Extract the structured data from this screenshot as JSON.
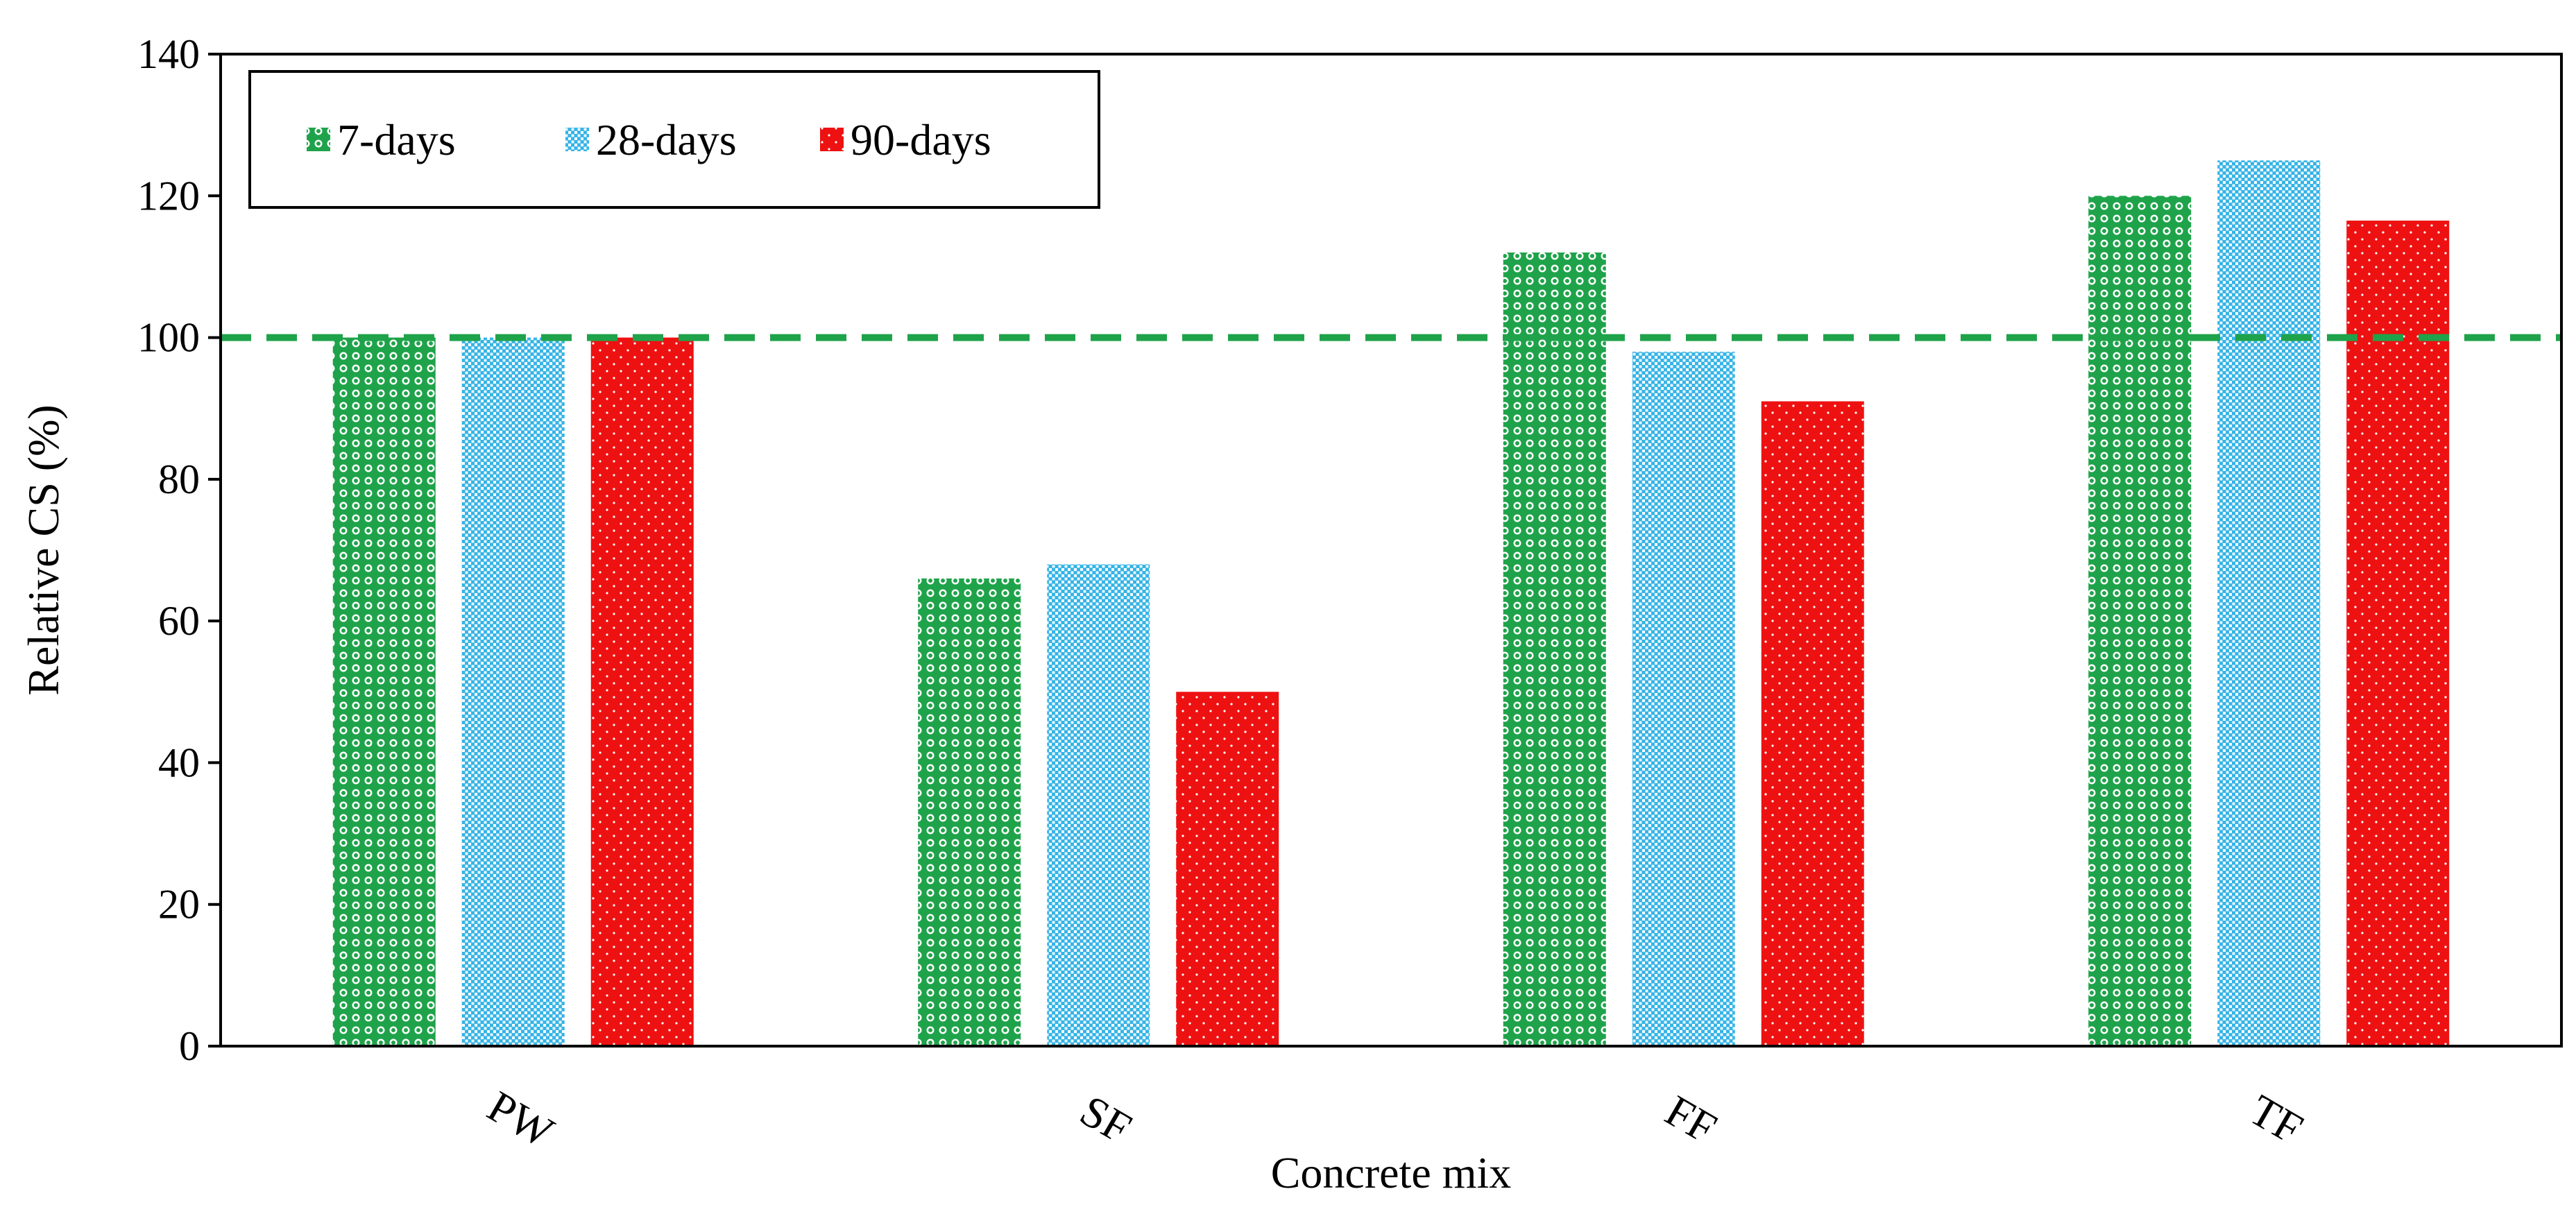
{
  "chart_data": {
    "type": "bar",
    "title": "",
    "xlabel": "Concrete mix",
    "ylabel": "Relative CS (%)",
    "categories": [
      "PW",
      "SF",
      "FF",
      "TF"
    ],
    "ylim": [
      0,
      140
    ],
    "yticks": [
      0,
      20,
      40,
      60,
      80,
      100,
      120,
      140
    ],
    "ytick_labels": [
      "0",
      "20",
      "40",
      "60",
      "80",
      "100",
      "120",
      "140"
    ],
    "grid": false,
    "legend_position": "top-left",
    "series": [
      {
        "name": "7-days",
        "color": "#1fa34a",
        "values": [
          100,
          66,
          112,
          120
        ]
      },
      {
        "name": "28-days",
        "color": "#36b4e6",
        "values": [
          100,
          68,
          98,
          125
        ]
      },
      {
        "name": "90-days",
        "color": "#ee1111",
        "values": [
          100,
          50,
          91,
          116.5
        ]
      }
    ],
    "reference_line": {
      "value": 100,
      "color": "#1fa34a",
      "style": "dashed"
    }
  }
}
